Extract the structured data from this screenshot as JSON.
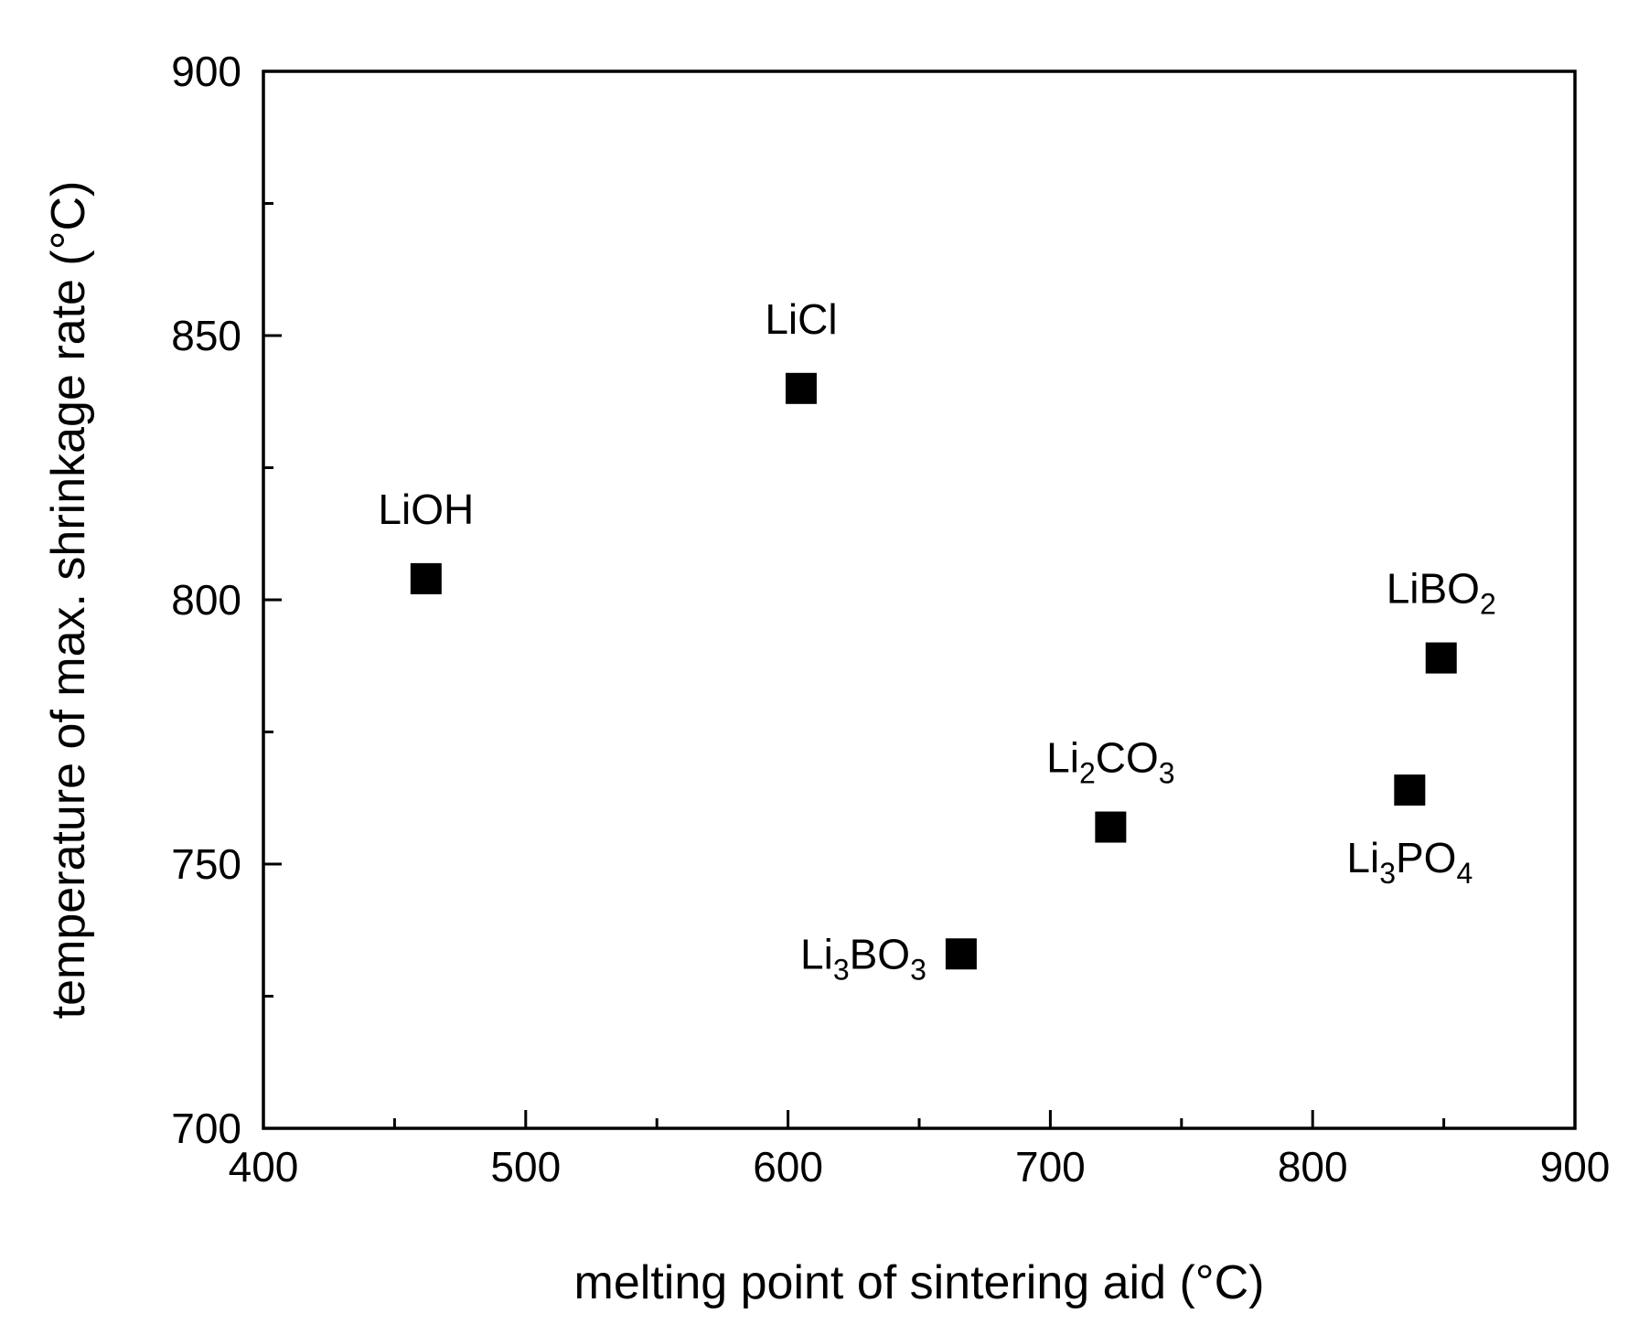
{
  "chart_data": {
    "type": "scatter",
    "xlabel": "melting point of sintering aid (°C)",
    "ylabel": "temperature of max. shrinkage rate (°C)",
    "xlim": [
      400,
      900
    ],
    "ylim": [
      700,
      900
    ],
    "xticks": [
      400,
      500,
      600,
      700,
      800,
      900
    ],
    "xticks_minor": [
      450,
      550,
      650,
      750,
      850
    ],
    "yticks": [
      700,
      750,
      800,
      850,
      900
    ],
    "yticks_minor": [
      725,
      775,
      825,
      875
    ],
    "grid": false,
    "marker": "square",
    "marker_color": "#000000",
    "points": [
      {
        "x": 462,
        "y": 804,
        "label": [
          {
            "t": "LiOH"
          }
        ],
        "pos": "above"
      },
      {
        "x": 605,
        "y": 840,
        "label": [
          {
            "t": "LiCl"
          }
        ],
        "pos": "above"
      },
      {
        "x": 666,
        "y": 733,
        "label": [
          {
            "t": "Li"
          },
          {
            "t": "3",
            "sub": true
          },
          {
            "t": "BO"
          },
          {
            "t": "3",
            "sub": true
          }
        ],
        "pos": "left"
      },
      {
        "x": 723,
        "y": 757,
        "label": [
          {
            "t": "Li"
          },
          {
            "t": "2",
            "sub": true
          },
          {
            "t": "CO"
          },
          {
            "t": "3",
            "sub": true
          }
        ],
        "pos": "above"
      },
      {
        "x": 837,
        "y": 764,
        "label": [
          {
            "t": "Li"
          },
          {
            "t": "3",
            "sub": true
          },
          {
            "t": "PO"
          },
          {
            "t": "4",
            "sub": true
          }
        ],
        "pos": "below"
      },
      {
        "x": 849,
        "y": 789,
        "label": [
          {
            "t": "LiBO"
          },
          {
            "t": "2",
            "sub": true
          }
        ],
        "pos": "above"
      }
    ]
  }
}
